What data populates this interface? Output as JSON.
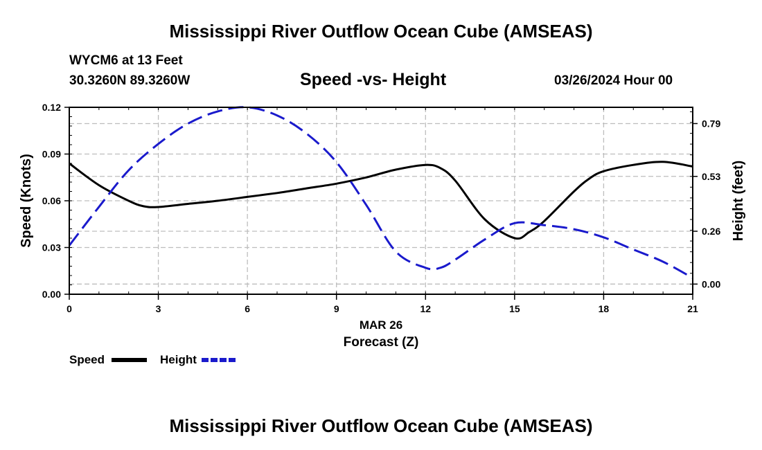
{
  "page_title": "Mississippi River Outflow Ocean Cube (AMSEAS)",
  "station": {
    "line1": "WYCM6 at 13 Feet",
    "line2": "30.3260N  89.3260W"
  },
  "subtitle": "Speed -vs- Height",
  "date_label": "03/26/2024 Hour 00",
  "footer_title": "Mississippi River Outflow Ocean Cube (AMSEAS)",
  "chart_data": {
    "type": "line",
    "title": "Speed -vs- Height",
    "xlabel": "Forecast (Z)",
    "xlabel_date": "MAR 26",
    "ylabel": "Speed (Knots)",
    "y2label": "Height (feet)",
    "xlim": [
      0,
      21
    ],
    "ylim": [
      0,
      0.12
    ],
    "y2lim": [
      -0.05,
      0.87
    ],
    "x_ticks": [
      "0",
      "3",
      "6",
      "9",
      "12",
      "15",
      "18",
      "21"
    ],
    "y_ticks": [
      "0.00",
      "0.03",
      "0.06",
      "0.09",
      "0.12"
    ],
    "y2_ticks": [
      "0.00",
      "0.26",
      "0.53",
      "0.79"
    ],
    "grid": true,
    "legend_position": "bottom-left",
    "series": [
      {
        "name": "Speed",
        "axis": "left",
        "color": "#000000",
        "style": "solid",
        "x": [
          0,
          1,
          2,
          2.5,
          3,
          4,
          5,
          6,
          7,
          8,
          9,
          10,
          11,
          12,
          12.5,
          13,
          14,
          15,
          15.5,
          16,
          17,
          17.5,
          18,
          19,
          20,
          21
        ],
        "values": [
          0.084,
          0.07,
          0.06,
          0.0565,
          0.056,
          0.058,
          0.06,
          0.0625,
          0.065,
          0.068,
          0.071,
          0.075,
          0.08,
          0.083,
          0.081,
          0.073,
          0.048,
          0.036,
          0.04,
          0.047,
          0.066,
          0.074,
          0.079,
          0.083,
          0.085,
          0.082
        ]
      },
      {
        "name": "Height",
        "axis": "right",
        "color": "#1a1acc",
        "style": "dashed",
        "x": [
          0,
          1,
          2,
          3,
          4,
          5,
          6,
          7,
          8,
          9,
          10,
          11,
          12,
          12.5,
          13,
          14,
          15,
          16,
          17,
          18,
          19,
          20,
          21
        ],
        "values": [
          0.19,
          0.38,
          0.56,
          0.69,
          0.79,
          0.85,
          0.87,
          0.83,
          0.74,
          0.6,
          0.39,
          0.16,
          0.08,
          0.08,
          0.12,
          0.22,
          0.3,
          0.29,
          0.27,
          0.23,
          0.17,
          0.11,
          0.03
        ]
      }
    ]
  }
}
